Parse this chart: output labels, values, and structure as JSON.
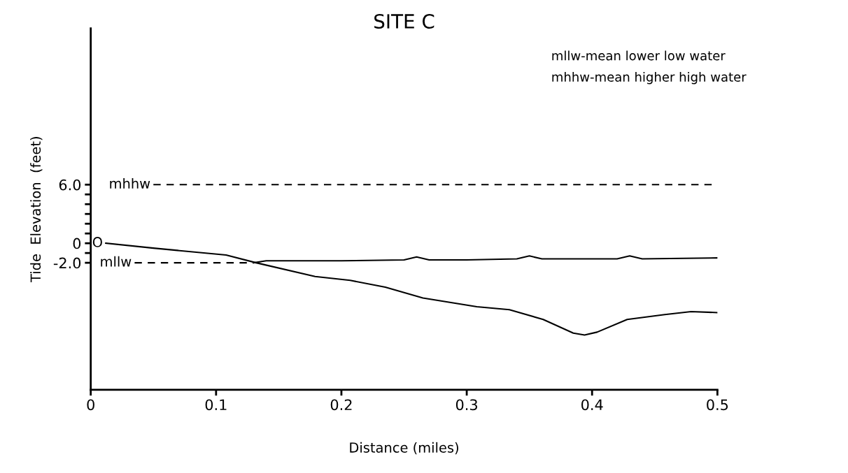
{
  "chart_data": {
    "type": "line",
    "title": "SITE C",
    "xlabel": "Distance (miles)",
    "ylabel": "Tide  Elevation  (feet)",
    "annotations": [
      "mllw-mean lower low water",
      "mhhw-mean higher high water",
      {
        "text": "mhhw",
        "x": 0.05,
        "y": 6.0
      },
      {
        "text": "O",
        "x": 0.012,
        "y": 0
      },
      {
        "text": "mllw",
        "x": 0.035,
        "y": -2.0
      }
    ],
    "series": [
      {
        "color": "#000000",
        "line_style": "solid",
        "x": [
          0.012,
          0.05,
          0.108,
          0.132,
          0.179,
          0.207,
          0.235,
          0.265,
          0.308,
          0.334,
          0.361,
          0.385,
          0.394,
          0.404,
          0.428,
          0.458,
          0.479,
          0.5
        ],
        "values": [
          0,
          -0.5,
          -1.2,
          -2.0,
          -3.4,
          -3.8,
          -4.5,
          -5.6,
          -6.5,
          -6.8,
          -7.8,
          -9.2,
          -9.4,
          -9.1,
          -7.8,
          -7.3,
          -7.0,
          -7.1
        ]
      },
      {
        "color": "#000000",
        "line_style": "solid",
        "x": [
          0.13,
          0.14,
          0.2,
          0.25,
          0.26,
          0.27,
          0.3,
          0.34,
          0.35,
          0.36,
          0.42,
          0.43,
          0.44,
          0.5
        ],
        "values": [
          -2.0,
          -1.8,
          -1.8,
          -1.7,
          -1.4,
          -1.7,
          -1.7,
          -1.6,
          -1.3,
          -1.6,
          -1.6,
          -1.3,
          -1.6,
          -1.5
        ]
      },
      {
        "color": "#000000",
        "line_style": "dashed",
        "x": [
          0.05,
          0.5
        ],
        "values": [
          6.0,
          6.0
        ]
      },
      {
        "color": "#000000",
        "line_style": "dashed",
        "x": [
          0.035,
          0.13
        ],
        "values": [
          -2.0,
          -2.0
        ]
      }
    ],
    "xlim": [
      0,
      0.5
    ],
    "xticks": [
      0,
      0.1,
      0.2,
      0.3,
      0.4,
      0.5
    ],
    "ylim": [
      -15,
      22
    ],
    "yticks": [
      {
        "value": 6.0,
        "label": "6.0"
      },
      {
        "value": 5,
        "label": null
      },
      {
        "value": 4,
        "label": null
      },
      {
        "value": 3,
        "label": null
      },
      {
        "value": 2,
        "label": null
      },
      {
        "value": 1,
        "label": null
      },
      0,
      {
        "value": -1,
        "label": null
      },
      {
        "value": -2.0,
        "label": "-2.0"
      }
    ],
    "grid": false,
    "legend": false
  }
}
